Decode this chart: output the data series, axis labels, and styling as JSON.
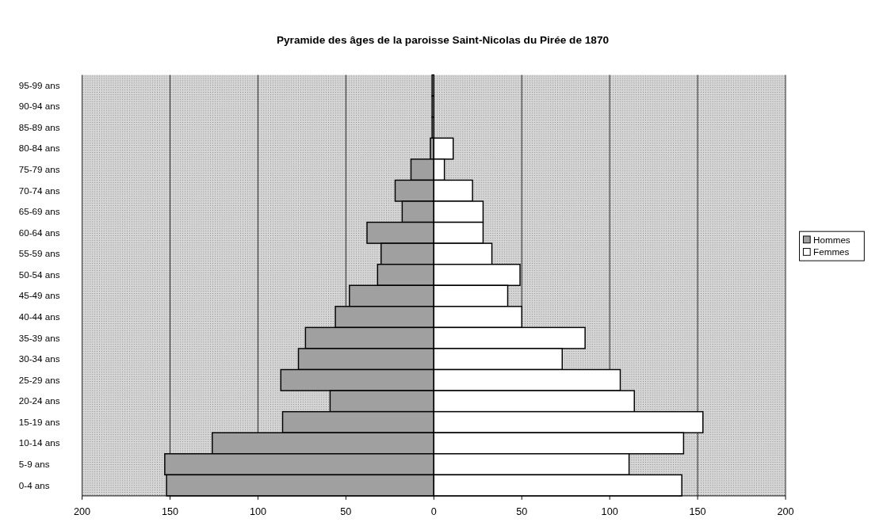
{
  "chart_data": {
    "type": "bar",
    "orientation": "horizontal",
    "stacked": true,
    "title": "Pyramide des âges de la paroisse Saint-Nicolas du Pirée de 1870",
    "categories": [
      "95-99 ans",
      "90-94 ans",
      "85-89 ans",
      "80-84 ans",
      "75-79 ans",
      "70-74 ans",
      "65-69 ans",
      "60-64 ans",
      "55-59 ans",
      "50-54 ans",
      "45-49 ans",
      "40-44 ans",
      "35-39 ans",
      "30-34 ans",
      "25-29 ans",
      "20-24 ans",
      "15-19 ans",
      "10-14 ans",
      "5-9 ans",
      "0-4 ans"
    ],
    "series": [
      {
        "name": "Hommes",
        "color": "#a0a0a0",
        "values": [
          -1,
          -1,
          -1,
          -2,
          -13,
          -22,
          -18,
          -38,
          -30,
          -32,
          -48,
          -56,
          -73,
          -77,
          -87,
          -59,
          -86,
          -126,
          -153,
          -152
        ]
      },
      {
        "name": "Femmes",
        "color": "#ffffff",
        "values": [
          0,
          0,
          0,
          11,
          6,
          22,
          28,
          28,
          33,
          49,
          42,
          50,
          86,
          73,
          106,
          114,
          153,
          142,
          111,
          141
        ]
      }
    ],
    "xlim": [
      -200,
      200
    ],
    "xticks": [
      {
        "value": -200,
        "label": "200"
      },
      {
        "value": -150,
        "label": "150"
      },
      {
        "value": -100,
        "label": "100"
      },
      {
        "value": -50,
        "label": "50"
      },
      0,
      50,
      100,
      150,
      200
    ],
    "grid": "x",
    "legend": "right"
  }
}
